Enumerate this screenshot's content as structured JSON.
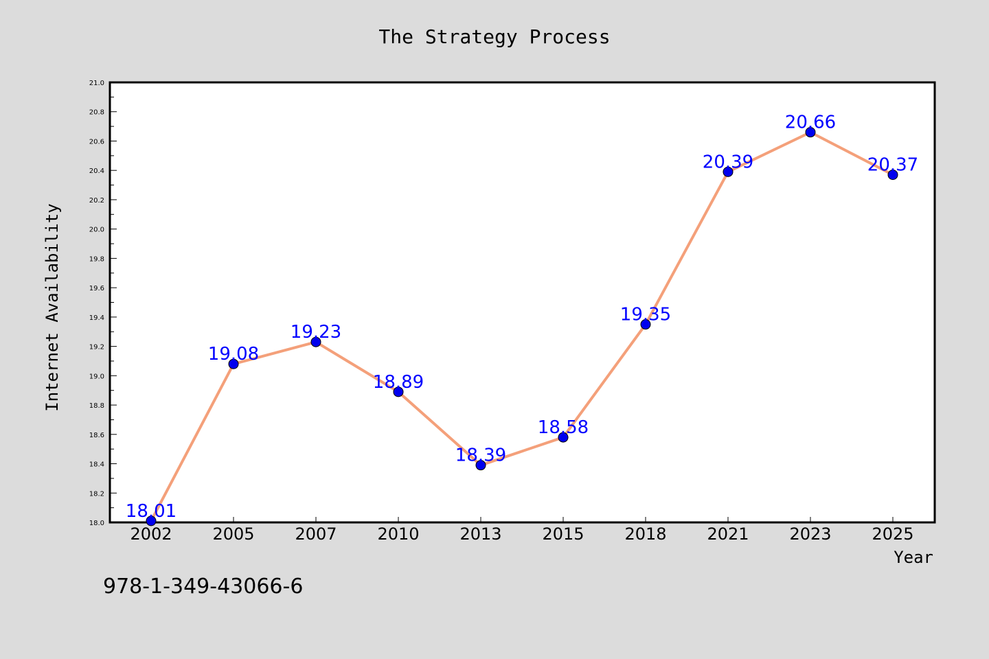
{
  "chart_data": {
    "type": "line",
    "title": "The Strategy Process",
    "xlabel": "Year",
    "ylabel": "Internet Availability",
    "categories": [
      "2002",
      "2005",
      "2007",
      "2010",
      "2013",
      "2015",
      "2018",
      "2021",
      "2023",
      "2025"
    ],
    "series": [
      {
        "values": [
          18.01,
          19.08,
          19.23,
          18.89,
          18.39,
          18.58,
          19.35,
          20.39,
          20.66,
          20.37
        ],
        "labels": [
          "18.01",
          "19.08",
          "19.23",
          "18.89",
          "18.39",
          "18.58",
          "19.35",
          "20.39",
          "20.66",
          "20.37"
        ],
        "line_color": "#f4a07a",
        "marker_color": "#0000ee",
        "label_color": "#0000ff"
      }
    ],
    "ylim": [
      18.0,
      21.0
    ],
    "yticks": [
      "18.0",
      "18.2",
      "18.4",
      "18.6",
      "18.8",
      "19.0",
      "19.2",
      "19.4",
      "19.6",
      "19.8",
      "20.0",
      "20.2",
      "20.4",
      "20.6",
      "20.8",
      "21.0"
    ],
    "grid": false,
    "legend": "none"
  },
  "footer": {
    "isbn": "978-1-349-43066-6"
  }
}
